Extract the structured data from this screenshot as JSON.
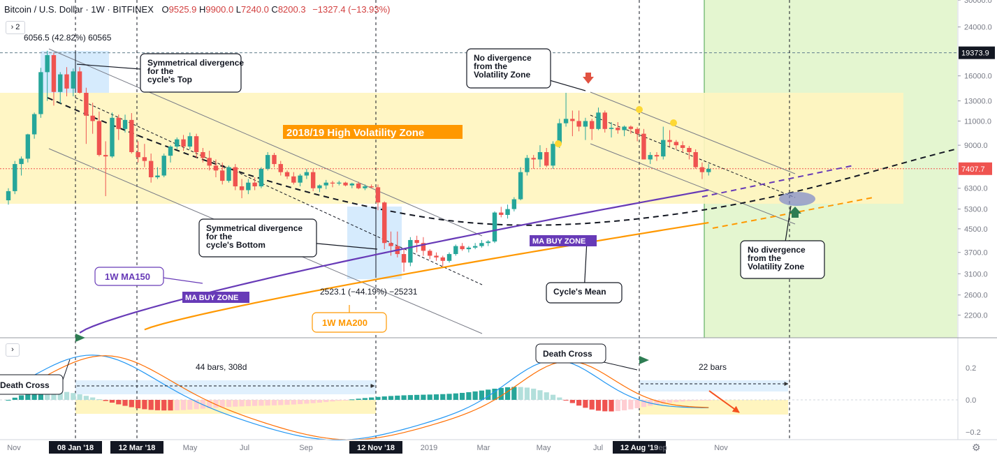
{
  "header": {
    "symbol": "Bitcoin / U.S. Dollar",
    "interval": "1W",
    "exchange": "BITFINEX",
    "open_key": "O",
    "open": "9525.9",
    "high_key": "H",
    "high": "9900.0",
    "low_key": "L",
    "low": "7240.0",
    "close_key": "C",
    "close": "8200.3",
    "change": "−1327.4 (−13.93%)",
    "collapse_label": "2"
  },
  "colors": {
    "bull": "#26a69a",
    "bear": "#ef5350",
    "ma150": "#673ab7",
    "ma200": "#ff9800",
    "zone": "#fff3b0",
    "green_zone": "#dff5c8",
    "arrow_green": "#2e7d53",
    "arrow_red": "#e15241"
  },
  "chart_data": [
    {
      "type": "candlestick",
      "title": "",
      "price_axis": {
        "scale": "log",
        "ticks": [
          "30000.0",
          "24000.0",
          "19373.9",
          "16000.0",
          "13000.0",
          "11000.0",
          "9000.0",
          "7407.7",
          "6300.0",
          "5300.0",
          "4500.0",
          "3700.0",
          "3100.0",
          "2600.0",
          "2200.0"
        ],
        "last_price_label": "7407.7",
        "ath_label": "19373.9",
        "range": [
          1850,
          31000
        ]
      },
      "time_axis": {
        "labels": [
          "Nov",
          "08 Jan '18",
          "12 Mar '18",
          "May",
          "Jul",
          "Sep",
          "12 Nov '18",
          "2019",
          "Mar",
          "May",
          "Jul",
          "12 Aug '19",
          "Sep",
          "Nov"
        ],
        "highlighted": [
          "08 Jan '18",
          "12 Mar '18",
          "12 Nov '18",
          "12 Aug '19"
        ]
      },
      "ohlc_weekly": [
        [
          5700,
          6300,
          5500,
          6150
        ],
        [
          6150,
          7900,
          6000,
          7700
        ],
        [
          7700,
          8200,
          7000,
          8050
        ],
        [
          8050,
          9900,
          7800,
          9850
        ],
        [
          9850,
          11800,
          9500,
          11650
        ],
        [
          11650,
          17100,
          11300,
          16500
        ],
        [
          16500,
          19700,
          13000,
          19000
        ],
        [
          19000,
          19400,
          12500,
          14000
        ],
        [
          14000,
          16500,
          12700,
          16200
        ],
        [
          16200,
          17200,
          13500,
          14400
        ],
        [
          14400,
          17000,
          13500,
          16600
        ],
        [
          16600,
          17200,
          13800,
          13900
        ],
        [
          13900,
          14500,
          9100,
          11500
        ],
        [
          11500,
          12800,
          9900,
          11000
        ],
        [
          11000,
          11900,
          8200,
          8300
        ],
        [
          8300,
          9300,
          5900,
          8200
        ],
        [
          8200,
          11800,
          8100,
          11300
        ],
        [
          11300,
          11600,
          9400,
          10300
        ],
        [
          10300,
          11600,
          10000,
          11100
        ],
        [
          11100,
          11750,
          8400,
          8500
        ],
        [
          8500,
          9300,
          7800,
          8150
        ],
        [
          8150,
          9100,
          7500,
          7900
        ],
        [
          7900,
          8400,
          6600,
          6900
        ],
        [
          6900,
          7500,
          6800,
          7000
        ],
        [
          7000,
          8400,
          6900,
          8250
        ],
        [
          8250,
          9000,
          7800,
          8900
        ],
        [
          8900,
          9600,
          8700,
          9450
        ],
        [
          9450,
          9800,
          8600,
          8900
        ],
        [
          8900,
          10000,
          8700,
          9700
        ],
        [
          9700,
          9900,
          8100,
          8500
        ],
        [
          8500,
          8800,
          7800,
          8100
        ],
        [
          8100,
          8600,
          7300,
          7600
        ],
        [
          7600,
          8000,
          6900,
          7300
        ],
        [
          7300,
          7800,
          6500,
          6700
        ],
        [
          6700,
          7600,
          6600,
          7500
        ],
        [
          7500,
          7700,
          6200,
          6400
        ],
        [
          6400,
          6800,
          5800,
          6200
        ],
        [
          6200,
          6800,
          6000,
          6600
        ],
        [
          6600,
          6900,
          6200,
          6400
        ],
        [
          6400,
          7500,
          6300,
          7400
        ],
        [
          7400,
          8500,
          7300,
          8300
        ],
        [
          8300,
          8450,
          7500,
          7700
        ],
        [
          7700,
          7900,
          7000,
          7200
        ],
        [
          7200,
          7300,
          6800,
          6950
        ],
        [
          6950,
          7200,
          6500,
          6600
        ],
        [
          6600,
          7100,
          6400,
          7000
        ],
        [
          7000,
          7400,
          6800,
          7200
        ],
        [
          7200,
          7400,
          6150,
          6300
        ],
        [
          6300,
          6500,
          6100,
          6450
        ],
        [
          6450,
          6750,
          6250,
          6600
        ],
        [
          6600,
          6700,
          6350,
          6550
        ],
        [
          6550,
          6700,
          6450,
          6600
        ],
        [
          6600,
          6650,
          6400,
          6450
        ],
        [
          6450,
          6600,
          6300,
          6550
        ],
        [
          6550,
          6650,
          6250,
          6300
        ],
        [
          6300,
          6500,
          6200,
          6400
        ],
        [
          6400,
          6500,
          6300,
          6350
        ],
        [
          6350,
          6500,
          5250,
          5600
        ],
        [
          5600,
          5650,
          3800,
          4000
        ],
        [
          4000,
          4400,
          3600,
          3900
        ],
        [
          3900,
          4400,
          3550,
          3650
        ],
        [
          3650,
          3800,
          3150,
          3400
        ],
        [
          3400,
          4200,
          3300,
          4100
        ],
        [
          4100,
          4250,
          3700,
          4000
        ],
        [
          4000,
          4200,
          3600,
          3750
        ],
        [
          3750,
          3800,
          3500,
          3600
        ],
        [
          3600,
          3700,
          3450,
          3550
        ],
        [
          3550,
          3600,
          3300,
          3450
        ],
        [
          3450,
          3700,
          3400,
          3650
        ],
        [
          3650,
          3950,
          3600,
          3900
        ],
        [
          3900,
          4000,
          3750,
          3800
        ],
        [
          3800,
          3900,
          3700,
          3850
        ],
        [
          3850,
          4000,
          3800,
          3900
        ],
        [
          3900,
          4100,
          3850,
          4000
        ],
        [
          4000,
          4100,
          3900,
          4050
        ],
        [
          4050,
          5200,
          4000,
          5150
        ],
        [
          5150,
          5400,
          4950,
          5050
        ],
        [
          5050,
          5500,
          4900,
          5300
        ],
        [
          5300,
          5850,
          5200,
          5750
        ],
        [
          5750,
          7500,
          5700,
          7200
        ],
        [
          7200,
          8300,
          7000,
          8100
        ],
        [
          8100,
          8300,
          7400,
          8000
        ],
        [
          8000,
          9000,
          7500,
          8500
        ],
        [
          8500,
          8800,
          7500,
          7600
        ],
        [
          7600,
          9300,
          7400,
          9100
        ],
        [
          9100,
          11200,
          8800,
          10800
        ],
        [
          10800,
          13900,
          10500,
          11200
        ],
        [
          11200,
          12000,
          9700,
          11000
        ],
        [
          11000,
          12000,
          10100,
          10500
        ],
        [
          10500,
          11300,
          9400,
          11000
        ],
        [
          11000,
          11200,
          9400,
          10300
        ],
        [
          10300,
          12300,
          10200,
          11800
        ],
        [
          11800,
          12000,
          10000,
          10300
        ],
        [
          10300,
          10900,
          9600,
          10400
        ],
        [
          10400,
          10900,
          9900,
          10200
        ],
        [
          10200,
          10600,
          9700,
          10500
        ],
        [
          10500,
          10600,
          9900,
          10300
        ],
        [
          10300,
          10450,
          9300,
          9900
        ],
        [
          9900,
          10300,
          8000,
          8000
        ],
        [
          8000,
          8500,
          7700,
          8300
        ],
        [
          8300,
          8500,
          7900,
          8200
        ],
        [
          8200,
          10500,
          8000,
          9400
        ],
        [
          9400,
          10200,
          8900,
          9250
        ],
        [
          9250,
          9400,
          8700,
          9000
        ],
        [
          9000,
          9300,
          8500,
          8800
        ],
        [
          8800,
          8950,
          8000,
          8500
        ],
        [
          8500,
          8700,
          7400,
          7500
        ],
        [
          7500,
          7800,
          6800,
          7200
        ],
        [
          7200,
          7700,
          7000,
          7400
        ]
      ],
      "indicators": {
        "ma150": {
          "label": "1W MA150"
        },
        "ma200": {
          "label": "1W MA200"
        }
      },
      "annotations": {
        "zone_label": "2018/19 High Volatility Zone",
        "top_measure": "6056.5 (42.82%) 60565",
        "bottom_measure": "2523.1 (−44.19%) −25231",
        "callout_top": "Symmetrical divergence for the cycle's Top",
        "callout_bottom": "Symmetrical divergence for the cycle's Bottom",
        "callout_nodiv_upper": "No divergence from the Volatility Zone",
        "callout_nodiv_lower": "No divergence from the Volatility Zone",
        "callout_mean": "Cycle's Mean",
        "buy_zone_left": "MA BUY ZONE",
        "buy_zone_right": "MA BUY ZONE"
      }
    },
    {
      "type": "macd",
      "title": "",
      "value_axis": {
        "ticks": [
          "0.2",
          "0.0",
          "−0.2"
        ],
        "range": [
          -0.25,
          0.37
        ]
      },
      "annotations": {
        "bars_left": "44 bars, 308d",
        "bars_right": "22 bars",
        "death_cross_left": "Death Cross",
        "death_cross_right": "Death Cross"
      }
    }
  ]
}
